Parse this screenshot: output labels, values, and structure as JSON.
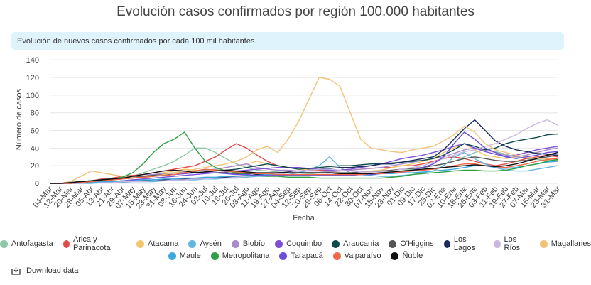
{
  "chart_data": {
    "type": "line",
    "title": "Evolución casos confirmados por región 100.000 habitantes",
    "subtitle": "Evolución de nuevos casos confirmados por cada 100 mil habitantes.",
    "x_label": "Fecha",
    "y_label": "Número de casos",
    "categories": [
      "04-Mar",
      "12-Mar",
      "20-Mar",
      "28-Mar",
      "05-Abr",
      "13-Abr",
      "21-Abr",
      "29-Abr",
      "07-May",
      "15-May",
      "23-May",
      "31-May",
      "08-Jun",
      "16-Jun",
      "24-Jun",
      "02-Jul",
      "10-Jul",
      "18-Jul",
      "26-Jul",
      "03-Ago",
      "11-Ago",
      "19-Ago",
      "27-Ago",
      "04-Sep",
      "12-Sep",
      "20-Sep",
      "28-Sep",
      "06-Oct",
      "14-Oct",
      "22-Oct",
      "30-Oct",
      "07-Nov",
      "15-Nov",
      "23-Nov",
      "01-Dic",
      "09-Dic",
      "17-Dic",
      "25-Dic",
      "02-Ene",
      "10-Ene",
      "18-Ene",
      "26-Ene",
      "03-Feb",
      "11-Feb",
      "19-Feb",
      "27-Feb",
      "07-Mar",
      "15-Mar",
      "23-Mar",
      "31-Mar"
    ],
    "ylim": [
      0,
      145
    ],
    "yticks": [
      0,
      20,
      40,
      60,
      80,
      100,
      120,
      140
    ],
    "grid": true,
    "series": [
      {
        "name": "Antofagasta",
        "color": "#8fc7a8",
        "values": [
          0,
          0,
          0,
          1,
          2,
          3,
          4,
          5,
          8,
          12,
          16,
          20,
          25,
          32,
          40,
          40,
          35,
          28,
          22,
          18,
          15,
          14,
          13,
          12,
          12,
          11,
          10,
          10,
          10,
          10,
          10,
          11,
          12,
          13,
          14,
          16,
          18,
          20,
          22,
          25,
          30,
          35,
          38,
          36,
          33,
          30,
          28,
          27,
          26,
          26
        ]
      },
      {
        "name": "Arica y Parinacota",
        "color": "#e04b4b",
        "values": [
          0,
          0,
          1,
          2,
          3,
          5,
          6,
          8,
          9,
          10,
          12,
          14,
          16,
          18,
          20,
          25,
          30,
          38,
          45,
          40,
          32,
          25,
          20,
          18,
          18,
          16,
          15,
          14,
          15,
          15,
          16,
          17,
          18,
          18,
          20,
          20,
          22,
          25,
          28,
          30,
          28,
          25,
          22,
          20,
          22,
          25,
          28,
          30,
          32,
          30
        ]
      },
      {
        "name": "Atacama",
        "color": "#f0c76e",
        "values": [
          0,
          0,
          0,
          1,
          2,
          3,
          4,
          5,
          6,
          8,
          10,
          12,
          14,
          16,
          15,
          14,
          15,
          18,
          20,
          22,
          25,
          22,
          20,
          18,
          16,
          15,
          14,
          13,
          12,
          12,
          13,
          14,
          15,
          18,
          20,
          22,
          25,
          28,
          35,
          40,
          45,
          38,
          32,
          30,
          28,
          30,
          32,
          35,
          38,
          40
        ]
      },
      {
        "name": "Aysén",
        "color": "#64b5e0",
        "values": [
          0,
          0,
          0,
          0,
          0,
          1,
          1,
          1,
          2,
          2,
          2,
          3,
          3,
          4,
          4,
          5,
          5,
          6,
          6,
          7,
          8,
          8,
          9,
          10,
          12,
          15,
          20,
          30,
          18,
          12,
          10,
          9,
          8,
          8,
          9,
          10,
          12,
          14,
          20,
          30,
          35,
          28,
          22,
          18,
          15,
          14,
          14,
          16,
          18,
          20
        ]
      },
      {
        "name": "Biobío",
        "color": "#a98ccb",
        "values": [
          0,
          0,
          1,
          2,
          3,
          4,
          5,
          6,
          8,
          10,
          10,
          11,
          12,
          13,
          14,
          15,
          16,
          18,
          20,
          22,
          18,
          16,
          15,
          15,
          14,
          14,
          14,
          13,
          14,
          15,
          16,
          17,
          18,
          20,
          22,
          24,
          26,
          28,
          30,
          34,
          38,
          40,
          38,
          35,
          32,
          30,
          32,
          35,
          38,
          40
        ]
      },
      {
        "name": "Coquimbo",
        "color": "#7b4fd6",
        "values": [
          0,
          0,
          0,
          1,
          1,
          2,
          2,
          3,
          4,
          5,
          6,
          7,
          8,
          9,
          10,
          11,
          12,
          13,
          14,
          15,
          16,
          17,
          18,
          18,
          18,
          17,
          16,
          15,
          15,
          16,
          18,
          20,
          22,
          25,
          28,
          30,
          32,
          35,
          38,
          42,
          45,
          40,
          36,
          33,
          30,
          32,
          35,
          38,
          40,
          42
        ]
      },
      {
        "name": "Araucanía",
        "color": "#0f4c4c",
        "values": [
          0,
          0,
          1,
          2,
          3,
          4,
          5,
          6,
          7,
          8,
          9,
          10,
          10,
          11,
          12,
          13,
          14,
          15,
          16,
          18,
          20,
          22,
          20,
          18,
          16,
          17,
          18,
          19,
          20,
          20,
          21,
          22,
          22,
          23,
          24,
          25,
          26,
          28,
          32,
          38,
          45,
          42,
          38,
          40,
          45,
          48,
          50,
          52,
          55,
          56
        ]
      },
      {
        "name": "O'Higgins",
        "color": "#555555",
        "values": [
          0,
          0,
          1,
          2,
          3,
          4,
          5,
          6,
          7,
          8,
          9,
          10,
          12,
          14,
          13,
          12,
          12,
          12,
          11,
          11,
          11,
          11,
          11,
          12,
          12,
          12,
          12,
          12,
          12,
          12,
          13,
          13,
          14,
          15,
          16,
          17,
          18,
          20,
          22,
          25,
          28,
          30,
          28,
          26,
          25,
          25,
          26,
          28,
          30,
          32
        ]
      },
      {
        "name": "Los Lagos",
        "color": "#1a2a5c",
        "values": [
          0,
          0,
          0,
          1,
          1,
          2,
          2,
          2,
          3,
          3,
          4,
          4,
          4,
          5,
          5,
          6,
          6,
          7,
          8,
          9,
          10,
          11,
          12,
          13,
          14,
          15,
          16,
          17,
          18,
          18,
          19,
          20,
          22,
          22,
          24,
          26,
          28,
          30,
          38,
          50,
          62,
          72,
          60,
          48,
          42,
          38,
          36,
          34,
          33,
          32
        ]
      },
      {
        "name": "Los Ríos",
        "color": "#c9b8e0",
        "values": [
          0,
          0,
          0,
          0,
          1,
          1,
          1,
          2,
          2,
          2,
          3,
          3,
          4,
          4,
          5,
          5,
          6,
          6,
          7,
          8,
          9,
          10,
          11,
          12,
          14,
          15,
          16,
          16,
          15,
          14,
          13,
          13,
          13,
          14,
          16,
          18,
          20,
          24,
          28,
          32,
          36,
          38,
          42,
          45,
          50,
          55,
          62,
          68,
          72,
          66
        ]
      },
      {
        "name": "Magallanes",
        "color": "#f2c27a",
        "values": [
          0,
          0,
          2,
          8,
          14,
          12,
          10,
          8,
          7,
          6,
          8,
          10,
          12,
          14,
          16,
          18,
          20,
          22,
          25,
          30,
          38,
          42,
          35,
          50,
          70,
          95,
          120,
          118,
          110,
          80,
          50,
          40,
          38,
          36,
          35,
          38,
          40,
          42,
          48,
          55,
          65,
          58,
          45,
          38,
          35,
          32,
          30,
          28,
          28,
          27
        ]
      },
      {
        "name": "Maule",
        "color": "#3ea9e0",
        "values": [
          0,
          0,
          0,
          1,
          1,
          2,
          2,
          3,
          3,
          4,
          4,
          5,
          5,
          6,
          6,
          7,
          7,
          8,
          8,
          9,
          9,
          10,
          10,
          10,
          10,
          10,
          10,
          10,
          10,
          10,
          10,
          10,
          11,
          11,
          12,
          12,
          13,
          14,
          15,
          16,
          18,
          20,
          20,
          18,
          17,
          18,
          20,
          22,
          24,
          25
        ]
      },
      {
        "name": "Metropolitana",
        "color": "#2ea043",
        "values": [
          0,
          0,
          1,
          2,
          3,
          4,
          5,
          7,
          12,
          22,
          35,
          45,
          50,
          58,
          40,
          25,
          18,
          14,
          12,
          10,
          9,
          8,
          8,
          7,
          7,
          7,
          6,
          6,
          6,
          6,
          6,
          6,
          6,
          7,
          8,
          10,
          11,
          12,
          13,
          14,
          15,
          15,
          14,
          14,
          15,
          17,
          20,
          22,
          25,
          27
        ]
      },
      {
        "name": "Tarapacá",
        "color": "#6a4fd6",
        "values": [
          0,
          0,
          0,
          1,
          2,
          3,
          4,
          5,
          6,
          7,
          8,
          9,
          10,
          11,
          12,
          12,
          12,
          11,
          10,
          10,
          9,
          9,
          9,
          9,
          9,
          9,
          9,
          9,
          9,
          9,
          10,
          10,
          11,
          12,
          13,
          15,
          18,
          22,
          30,
          45,
          58,
          50,
          40,
          35,
          30,
          28,
          30,
          32,
          35,
          36
        ]
      },
      {
        "name": "Valparaíso",
        "color": "#f06a4a",
        "values": [
          0,
          0,
          0,
          1,
          2,
          3,
          4,
          5,
          6,
          7,
          8,
          9,
          10,
          12,
          14,
          16,
          15,
          14,
          13,
          12,
          11,
          11,
          10,
          10,
          10,
          10,
          10,
          10,
          10,
          10,
          10,
          11,
          11,
          12,
          13,
          14,
          15,
          16,
          18,
          20,
          22,
          22,
          20,
          19,
          18,
          20,
          22,
          25,
          27,
          28
        ]
      },
      {
        "name": "Ñuble",
        "color": "#111111",
        "values": [
          0,
          0,
          1,
          2,
          3,
          4,
          5,
          6,
          8,
          10,
          12,
          14,
          15,
          14,
          12,
          13,
          14,
          15,
          14,
          13,
          12,
          12,
          12,
          12,
          12,
          12,
          12,
          12,
          11,
          11,
          11,
          11,
          12,
          13,
          14,
          15,
          16,
          17,
          18,
          19,
          20,
          21,
          20,
          19,
          20,
          22,
          25,
          28,
          32,
          35
        ]
      }
    ]
  },
  "download_label": "Download data"
}
